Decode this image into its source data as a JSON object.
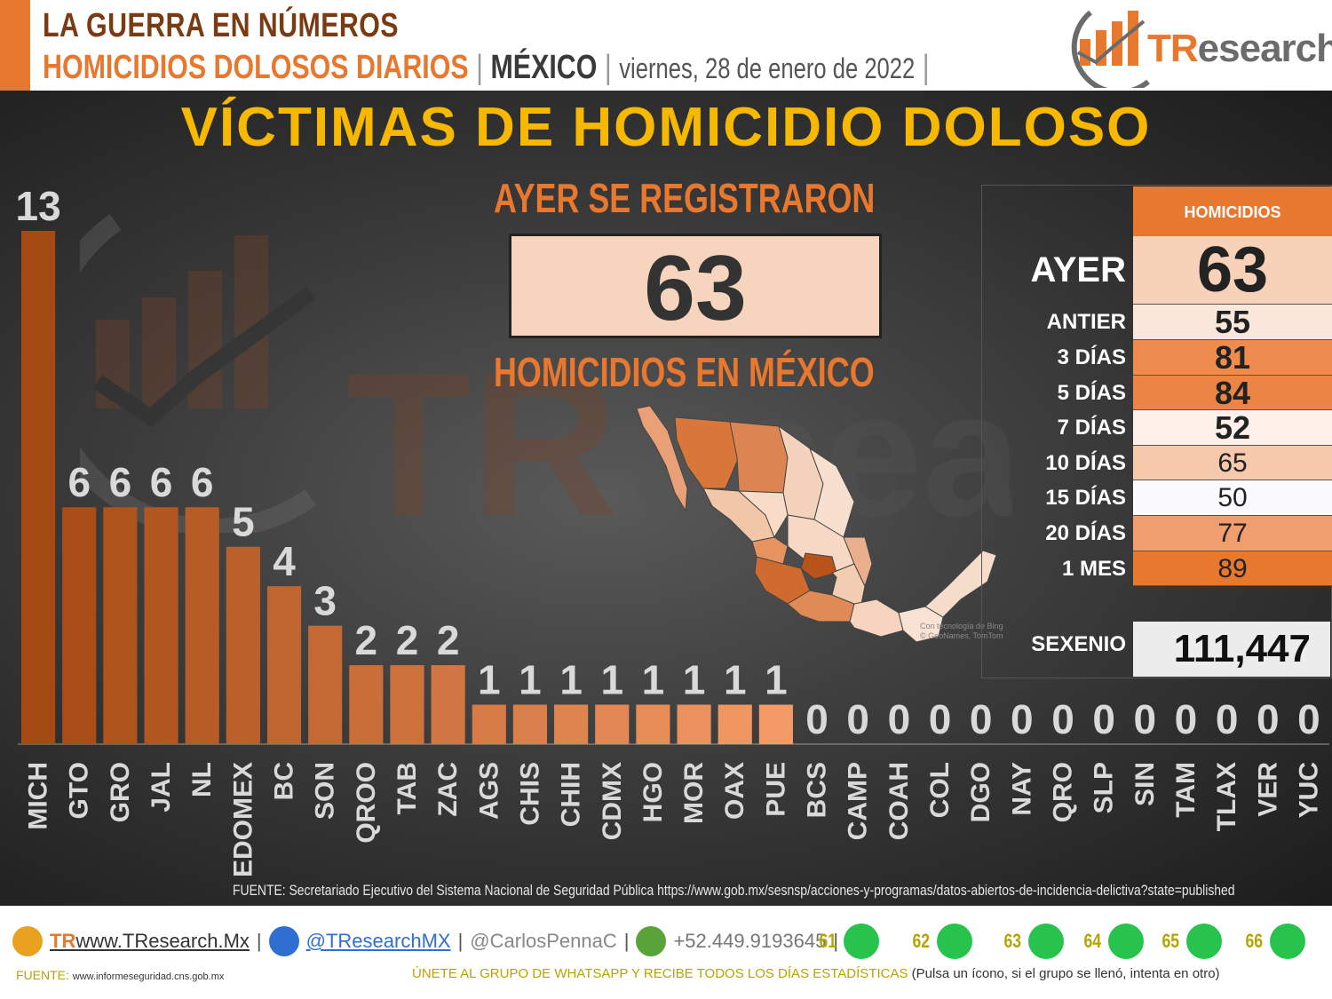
{
  "header": {
    "line1": "LA GUERRA EN NÚMEROS",
    "line2_title": "HOMICIDIOS DOLOSOS DIARIOS",
    "line2_country": "MÉXICO",
    "line2_date": "viernes, 28 de enero de 2022",
    "separator": "|",
    "logo_text_t": "TR",
    "logo_text_rest": "esearch"
  },
  "main_title": "VÍCTIMAS DE HOMICIDIO DOLOSO",
  "highlight": {
    "top": "AYER SE REGISTRARON",
    "value": "63",
    "bottom": "HOMICIDIOS EN MÉXICO"
  },
  "summary_table": {
    "header": "HOMICIDIOS",
    "rows": [
      {
        "label": "AYER",
        "value": "63",
        "bg": "#f7d1b8"
      },
      {
        "label": "ANTIER",
        "value": "55",
        "bg": "#fbe8dd"
      },
      {
        "label": "3 DÍAS",
        "value": "81",
        "bg": "#ee8c50"
      },
      {
        "label": "5 DÍAS",
        "value": "84",
        "bg": "#ec8446"
      },
      {
        "label": "7 DÍAS",
        "value": "52",
        "bg": "#fdf0e9"
      },
      {
        "label": "10 DÍAS",
        "value": "65",
        "bg": "#f6c9ad"
      },
      {
        "label": "15 DÍAS",
        "value": "50",
        "bg": "#fbfbfd"
      },
      {
        "label": "20 DÍAS",
        "value": "77",
        "bg": "#f09e6d"
      },
      {
        "label": "1 MES",
        "value": "89",
        "bg": "#e9782f"
      }
    ],
    "sexenio_label": "SEXENIO",
    "sexenio_value": "111,447"
  },
  "map_credit": "Con tecnología de Bing\n© GeoNames, TomTom",
  "chart_data": {
    "type": "bar",
    "title": "VÍCTIMAS DE HOMICIDIO DOLOSO",
    "categories": [
      "MICH",
      "GTO",
      "GRO",
      "JAL",
      "NL",
      "EDOMEX",
      "BC",
      "SON",
      "QROO",
      "TAB",
      "ZAC",
      "AGS",
      "CHIS",
      "CHIH",
      "CDMX",
      "HGO",
      "MOR",
      "OAX",
      "PUE",
      "BCS",
      "CAMP",
      "COAH",
      "COL",
      "DGO",
      "NAY",
      "QRO",
      "SLP",
      "SIN",
      "TAM",
      "TLAX",
      "VER",
      "YUC"
    ],
    "values": [
      13,
      6,
      6,
      6,
      6,
      5,
      4,
      3,
      2,
      2,
      2,
      1,
      1,
      1,
      1,
      1,
      1,
      1,
      1,
      0,
      0,
      0,
      0,
      0,
      0,
      0,
      0,
      0,
      0,
      0,
      0,
      0
    ],
    "ylim": [
      0,
      13
    ],
    "colors": {
      "dark": "#a64a14",
      "light": "#f49a66",
      "label": "#d9d9d9"
    }
  },
  "source": "FUENTE: Secretariado Ejecutivo del Sistema Nacional de Seguridad Pública https://www.gob.mx/sesnsp/acciones-y-programas/datos-abiertos-de-incidencia-delictiva?state=published",
  "footer": {
    "website": "www.TResearch.Mx",
    "website_t": "TR",
    "twitter": "@TResearchMX",
    "personal": "@CarlosPennaC",
    "phone": "+52.449.9193645",
    "whatsapp_groups": [
      "61",
      "62",
      "63",
      "64",
      "65",
      "66"
    ],
    "source_label": "FUENTE:",
    "source_url": "www.informeseguridad.cns.gob.mx",
    "join_text": "ÚNETE AL GRUPO DE WHATSAPP Y RECIBE TODOS LOS DÍAS ESTADÍSTICAS",
    "join_note": "(Pulsa un ícono, si el grupo se llenó, intenta en otro)"
  }
}
